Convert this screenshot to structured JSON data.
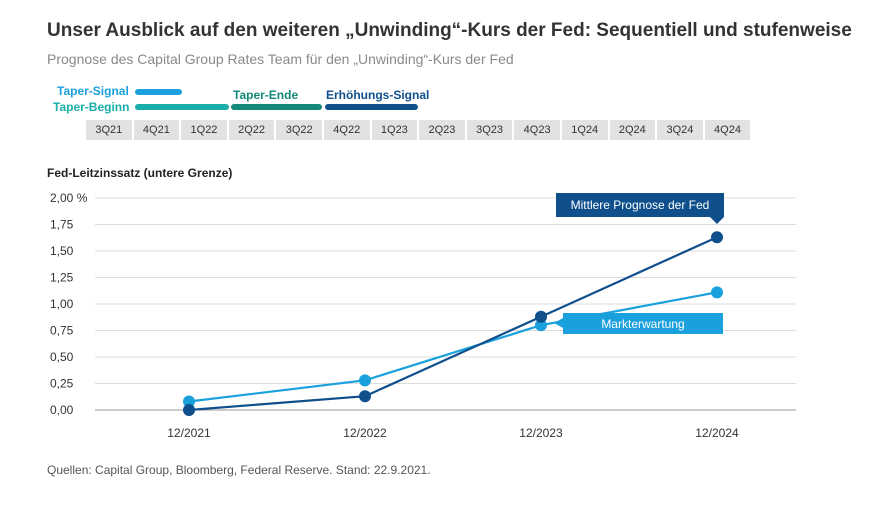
{
  "title": "Unser Ausblick auf den weiteren „Unwinding“-Kurs der Fed: Sequentiell und stufenweise",
  "subtitle": "Prognose des Capital Group Rates Team für den „Unwinding“-Kurs der Fed",
  "timeline": {
    "phases": {
      "taper_signal": {
        "label": "Taper-Signal",
        "color": "#1aa0dc"
      },
      "taper_beginn": {
        "label": "Taper-Beginn",
        "color": "#1aaea9"
      },
      "taper_ende": {
        "label": "Taper-Ende",
        "color": "#13897a"
      },
      "erhoehungs_signal": {
        "label": "Erhöhungs-Signal",
        "color": "#0e4f8c"
      }
    },
    "quarters": [
      "3Q21",
      "4Q21",
      "1Q22",
      "2Q22",
      "3Q22",
      "4Q22",
      "1Q23",
      "2Q23",
      "3Q23",
      "4Q23",
      "1Q24",
      "2Q24",
      "3Q24",
      "4Q24"
    ]
  },
  "source": "Quellen: Capital Group, Bloomberg, Federal Reserve. Stand: 22.9.2021.",
  "callouts": {
    "fed": "Mittlere Prognose der Fed",
    "market": "Markterwartung"
  },
  "chart_data": {
    "type": "line",
    "ylabel": "Fed-Leitzinssatz (untere Grenze)",
    "categories": [
      "12/2021",
      "12/2022",
      "12/2023",
      "12/2024"
    ],
    "ylim": [
      0,
      2
    ],
    "yticks": [
      "0,00",
      "0,25",
      "0,50",
      "0,75",
      "1,00",
      "1,25",
      "1,50",
      "1,75",
      "2,00 %"
    ],
    "grid": true,
    "series": [
      {
        "name": "Mittlere Prognose der Fed",
        "color": "#0e4f8c",
        "values": [
          0.0,
          0.13,
          0.88,
          1.63
        ]
      },
      {
        "name": "Markterwartung",
        "color": "#1aa0dc",
        "values": [
          0.08,
          0.28,
          0.8,
          1.11
        ]
      }
    ]
  }
}
